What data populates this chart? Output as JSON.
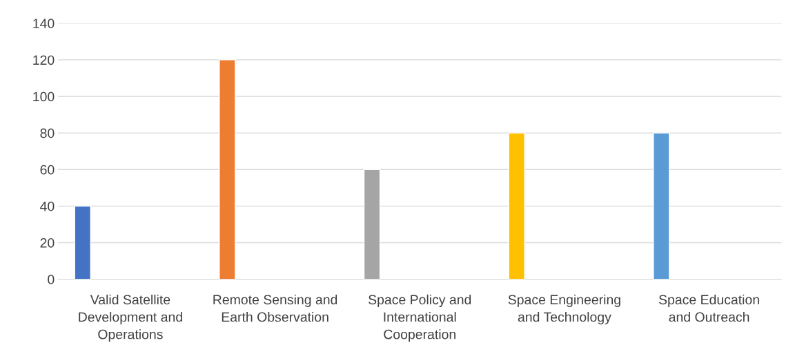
{
  "chart_data": {
    "type": "bar",
    "categories": [
      "Valid Satellite Development and Operations",
      "Remote Sensing and Earth Observation",
      "Space Policy and International Cooperation",
      "Space Engineering and Technology",
      "Space Education and Outreach"
    ],
    "values": [
      40,
      120,
      60,
      80,
      80
    ],
    "colors": [
      "#4472c4",
      "#ed7d31",
      "#a5a5a5",
      "#ffc000",
      "#5b9bd5"
    ],
    "ylim": [
      0,
      140
    ],
    "yticks": [
      0,
      20,
      40,
      60,
      80,
      100,
      120,
      140
    ],
    "grid": "y",
    "legend": false
  }
}
